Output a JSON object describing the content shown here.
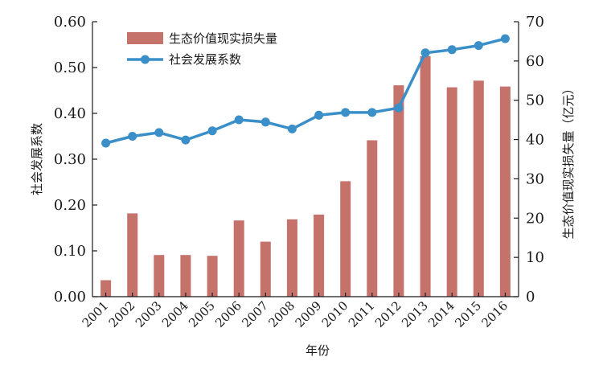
{
  "chart_data": {
    "type": "bar+line",
    "title": "",
    "xlabel": "年份",
    "ylabel_left": "社会发展系数",
    "ylabel_right": "生态价值现实损失量（亿元）",
    "categories": [
      "2001",
      "2002",
      "2003",
      "2004",
      "2005",
      "2006",
      "2007",
      "2008",
      "2009",
      "2010",
      "2011",
      "2012",
      "2013",
      "2014",
      "2015",
      "2016"
    ],
    "left_axis": {
      "min": 0,
      "max": 0.6,
      "ticks": [
        "0.00",
        "0.10",
        "0.20",
        "0.30",
        "0.40",
        "0.50",
        "0.60"
      ]
    },
    "right_axis": {
      "min": 0,
      "max": 70,
      "ticks": [
        "0",
        "10",
        "20",
        "30",
        "40",
        "50",
        "60",
        "70"
      ]
    },
    "series": [
      {
        "name": "生态价值现实损失量",
        "type": "bar",
        "axis": "right",
        "color": "#c4726a",
        "values": [
          4.2,
          21.2,
          10.6,
          10.6,
          10.4,
          19.4,
          14.0,
          19.7,
          20.9,
          29.4,
          39.8,
          53.8,
          61.2,
          53.3,
          55.0,
          53.5
        ]
      },
      {
        "name": "社会发展系数",
        "type": "line",
        "axis": "left",
        "color": "#3a8fc8",
        "values": [
          0.335,
          0.35,
          0.358,
          0.342,
          0.362,
          0.386,
          0.381,
          0.366,
          0.396,
          0.402,
          0.402,
          0.412,
          0.532,
          0.539,
          0.548,
          0.563
        ]
      }
    ],
    "legend_position": "top-left",
    "grid": false
  }
}
